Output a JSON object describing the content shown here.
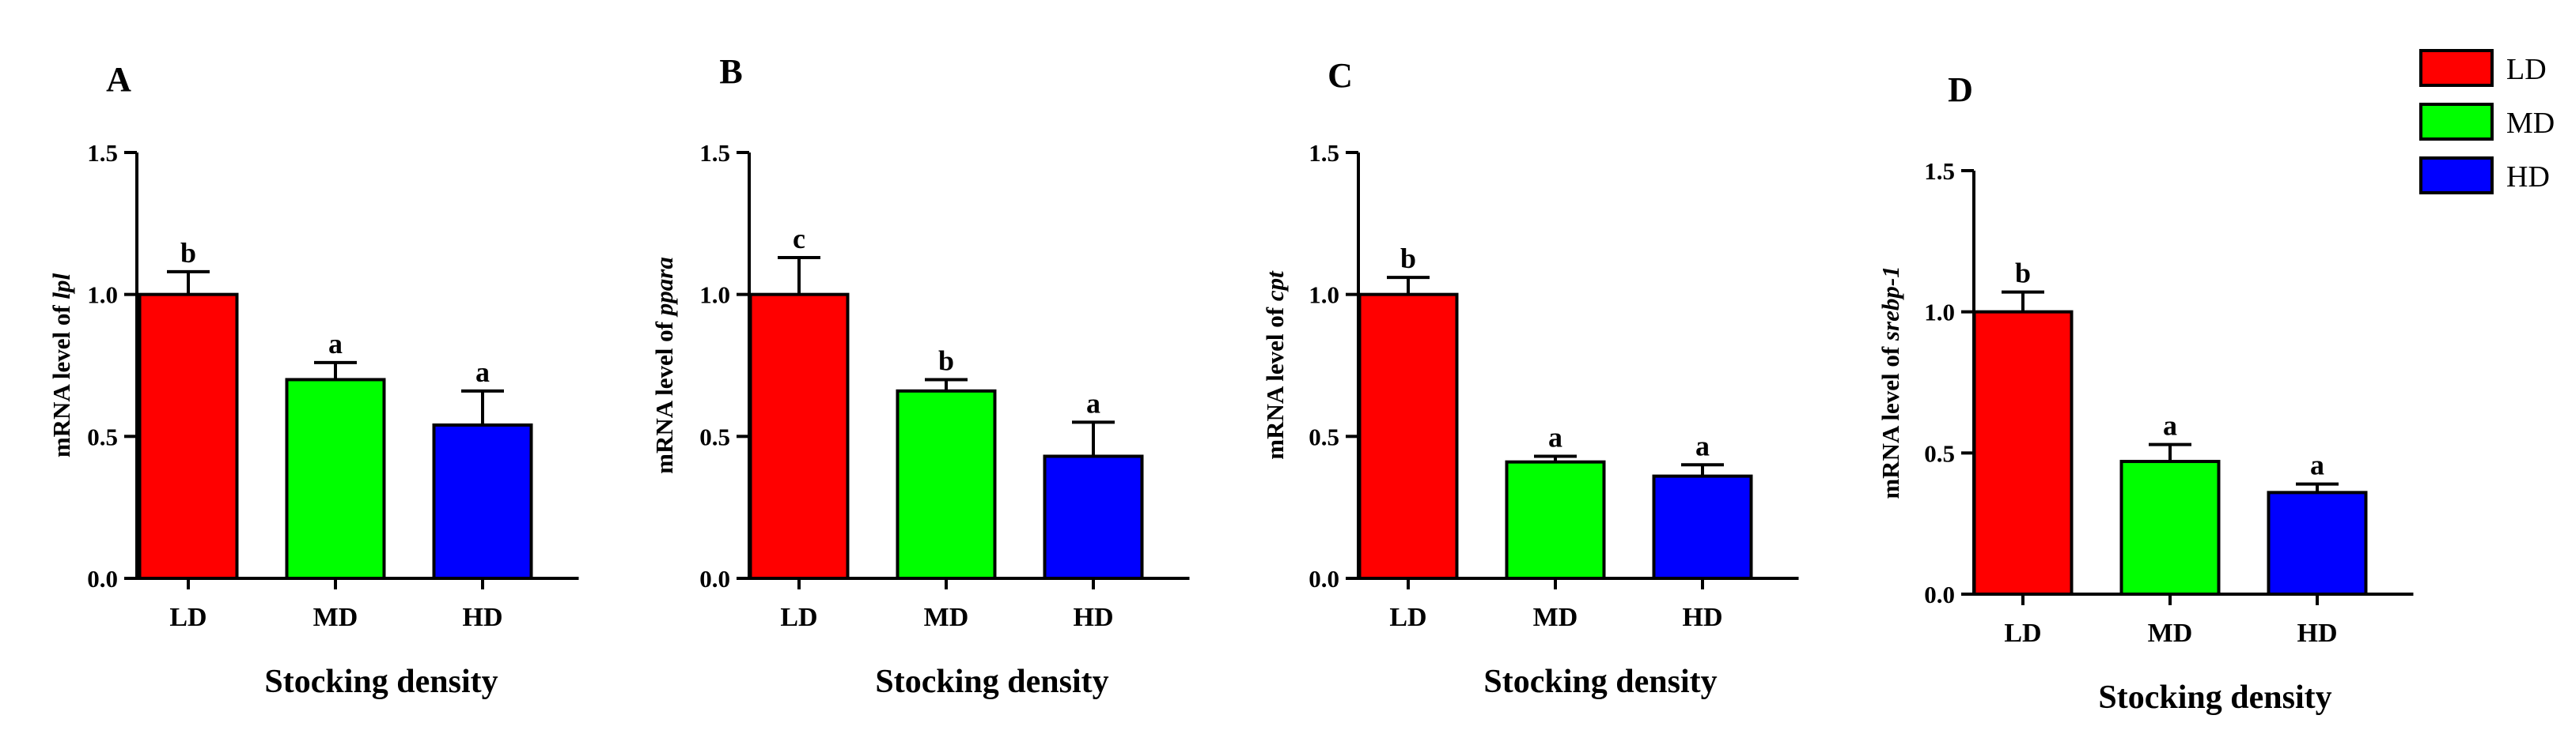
{
  "chart_data": [
    {
      "type": "bar",
      "panel": "A",
      "categories": [
        "LD",
        "MD",
        "HD"
      ],
      "values": [
        1.0,
        0.7,
        0.54
      ],
      "errors": [
        0.08,
        0.06,
        0.12
      ],
      "labels": [
        "b",
        "a",
        "a"
      ],
      "colors": [
        "#ff0000",
        "#00ff00",
        "#0000ff"
      ],
      "ylabel_prefix": "mRNA level of ",
      "ylabel_gene": "lpl",
      "xlabel": "Stocking density",
      "ylim": [
        0,
        1.5
      ],
      "yticks": [
        "0.0",
        "0.5",
        "1.0",
        "1.5"
      ]
    },
    {
      "type": "bar",
      "panel": "B",
      "categories": [
        "LD",
        "MD",
        "HD"
      ],
      "values": [
        1.0,
        0.66,
        0.43
      ],
      "errors": [
        0.13,
        0.04,
        0.12
      ],
      "labels": [
        "c",
        "b",
        "a"
      ],
      "colors": [
        "#ff0000",
        "#00ff00",
        "#0000ff"
      ],
      "ylabel_prefix": "mRNA level of ",
      "ylabel_gene": "ppara",
      "xlabel": "Stocking density",
      "ylim": [
        0,
        1.5
      ],
      "yticks": [
        "0.0",
        "0.5",
        "1.0",
        "1.5"
      ]
    },
    {
      "type": "bar",
      "panel": "C",
      "categories": [
        "LD",
        "MD",
        "HD"
      ],
      "values": [
        1.0,
        0.41,
        0.36
      ],
      "errors": [
        0.06,
        0.02,
        0.04
      ],
      "labels": [
        "b",
        "a",
        "a"
      ],
      "colors": [
        "#ff0000",
        "#00ff00",
        "#0000ff"
      ],
      "ylabel_prefix": "mRNA level of ",
      "ylabel_gene": "cpt",
      "xlabel": "Stocking density",
      "ylim": [
        0,
        1.5
      ],
      "yticks": [
        "0.0",
        "0.5",
        "1.0",
        "1.5"
      ]
    },
    {
      "type": "bar",
      "panel": "D",
      "categories": [
        "LD",
        "MD",
        "HD"
      ],
      "values": [
        1.0,
        0.47,
        0.36
      ],
      "errors": [
        0.07,
        0.06,
        0.03
      ],
      "labels": [
        "b",
        "a",
        "a"
      ],
      "colors": [
        "#ff0000",
        "#00ff00",
        "#0000ff"
      ],
      "ylabel_prefix": "mRNA level of ",
      "ylabel_gene": "srebp-1",
      "xlabel": "Stocking density",
      "ylim": [
        0,
        1.5
      ],
      "yticks": [
        "0.0",
        "0.5",
        "1.0",
        "1.5"
      ]
    }
  ],
  "legend": {
    "items": [
      {
        "label": "LD",
        "color": "#ff0000"
      },
      {
        "label": "MD",
        "color": "#00ff00"
      },
      {
        "label": "HD",
        "color": "#0000ff"
      }
    ],
    "placement": "top-right"
  }
}
